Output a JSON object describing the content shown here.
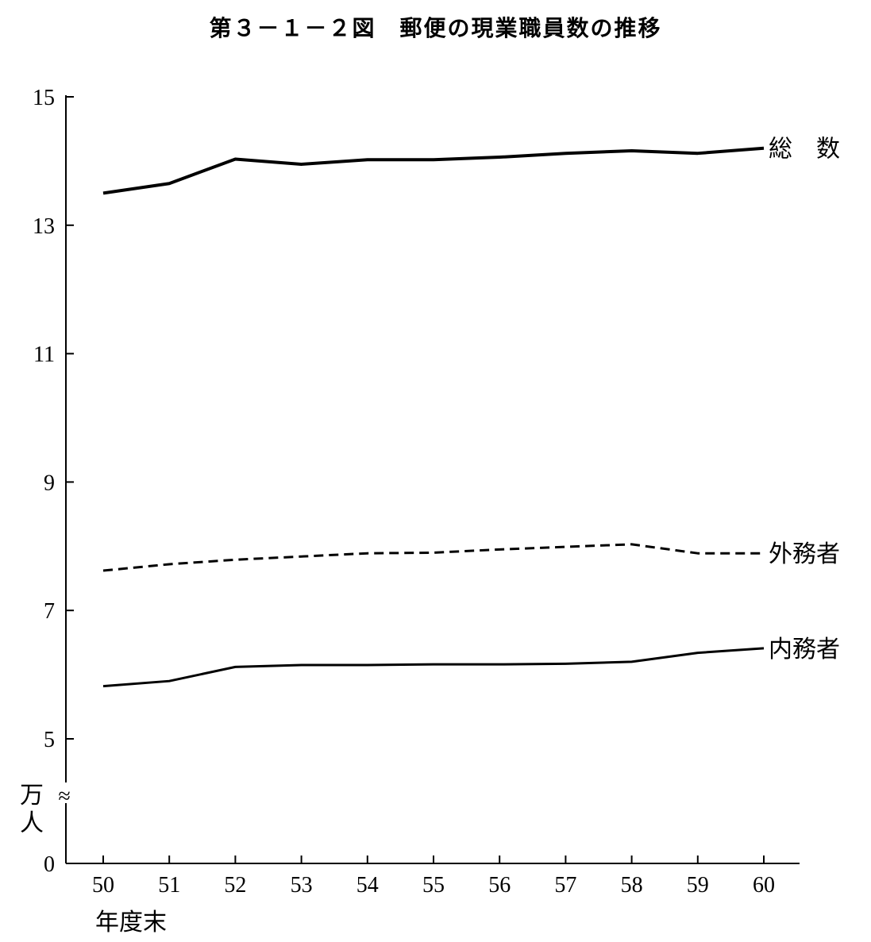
{
  "chart_data": {
    "type": "line",
    "title": "第３－１－２図　郵便の現業職員数の推移",
    "xlabel": "年度末",
    "ylabel": "万人",
    "x": [
      "50",
      "51",
      "52",
      "53",
      "54",
      "55",
      "56",
      "57",
      "58",
      "59",
      "60"
    ],
    "yticks": [
      "0",
      "5",
      "7",
      "9",
      "11",
      "13",
      "15"
    ],
    "ylim": [
      0,
      15
    ],
    "axis_break": "≈",
    "grid": false,
    "series": [
      {
        "name": "総　数",
        "style": "solid-thick",
        "values": [
          13.5,
          13.65,
          14.03,
          13.95,
          14.02,
          14.02,
          14.06,
          14.12,
          14.16,
          14.12,
          14.2
        ]
      },
      {
        "name": "外務者",
        "style": "dashed",
        "values": [
          7.62,
          7.72,
          7.79,
          7.84,
          7.89,
          7.9,
          7.95,
          7.99,
          8.03,
          7.89,
          7.89
        ]
      },
      {
        "name": "内務者",
        "style": "solid",
        "values": [
          5.82,
          5.9,
          6.12,
          6.15,
          6.15,
          6.16,
          6.16,
          6.17,
          6.2,
          6.34,
          6.41
        ]
      }
    ]
  }
}
